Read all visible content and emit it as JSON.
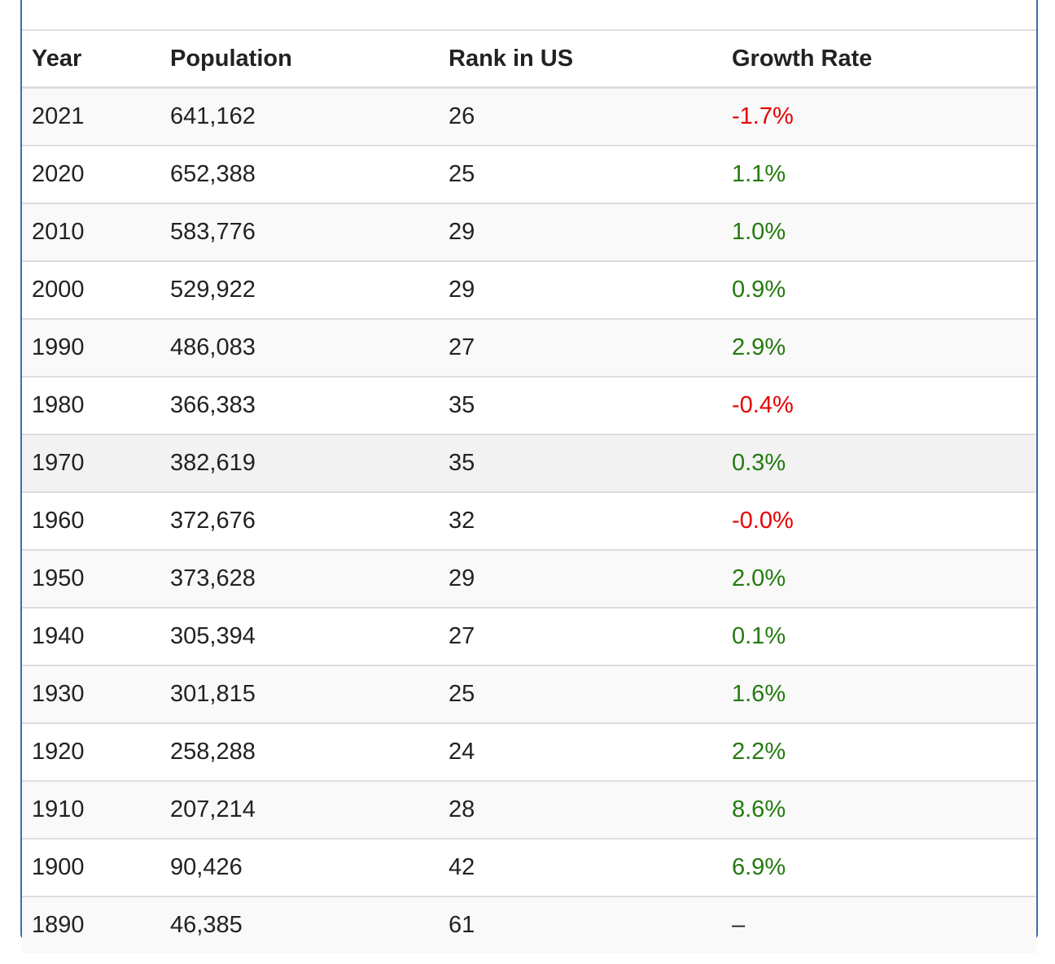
{
  "table": {
    "headers": [
      "Year",
      "Population",
      "Rank in US",
      "Growth Rate"
    ],
    "rows": [
      {
        "year": "2021",
        "population": "641,162",
        "rank": "26",
        "growth": "-1.7%",
        "trend": "neg"
      },
      {
        "year": "2020",
        "population": "652,388",
        "rank": "25",
        "growth": "1.1%",
        "trend": "pos"
      },
      {
        "year": "2010",
        "population": "583,776",
        "rank": "29",
        "growth": "1.0%",
        "trend": "pos"
      },
      {
        "year": "2000",
        "population": "529,922",
        "rank": "29",
        "growth": "0.9%",
        "trend": "pos"
      },
      {
        "year": "1990",
        "population": "486,083",
        "rank": "27",
        "growth": "2.9%",
        "trend": "pos"
      },
      {
        "year": "1980",
        "population": "366,383",
        "rank": "35",
        "growth": "-0.4%",
        "trend": "neg"
      },
      {
        "year": "1970",
        "population": "382,619",
        "rank": "35",
        "growth": "0.3%",
        "trend": "pos"
      },
      {
        "year": "1960",
        "population": "372,676",
        "rank": "32",
        "growth": "-0.0%",
        "trend": "neg"
      },
      {
        "year": "1950",
        "population": "373,628",
        "rank": "29",
        "growth": "2.0%",
        "trend": "pos"
      },
      {
        "year": "1940",
        "population": "305,394",
        "rank": "27",
        "growth": "0.1%",
        "trend": "pos"
      },
      {
        "year": "1930",
        "population": "301,815",
        "rank": "25",
        "growth": "1.6%",
        "trend": "pos"
      },
      {
        "year": "1920",
        "population": "258,288",
        "rank": "24",
        "growth": "2.2%",
        "trend": "pos"
      },
      {
        "year": "1910",
        "population": "207,214",
        "rank": "28",
        "growth": "8.6%",
        "trend": "pos"
      },
      {
        "year": "1900",
        "population": "90,426",
        "rank": "42",
        "growth": "6.9%",
        "trend": "pos"
      },
      {
        "year": "1890",
        "population": "46,385",
        "rank": "61",
        "growth": "–",
        "trend": "none"
      }
    ]
  },
  "colors": {
    "negative": "#e60000",
    "positive": "#237a0e",
    "border": "#3b6db3"
  }
}
